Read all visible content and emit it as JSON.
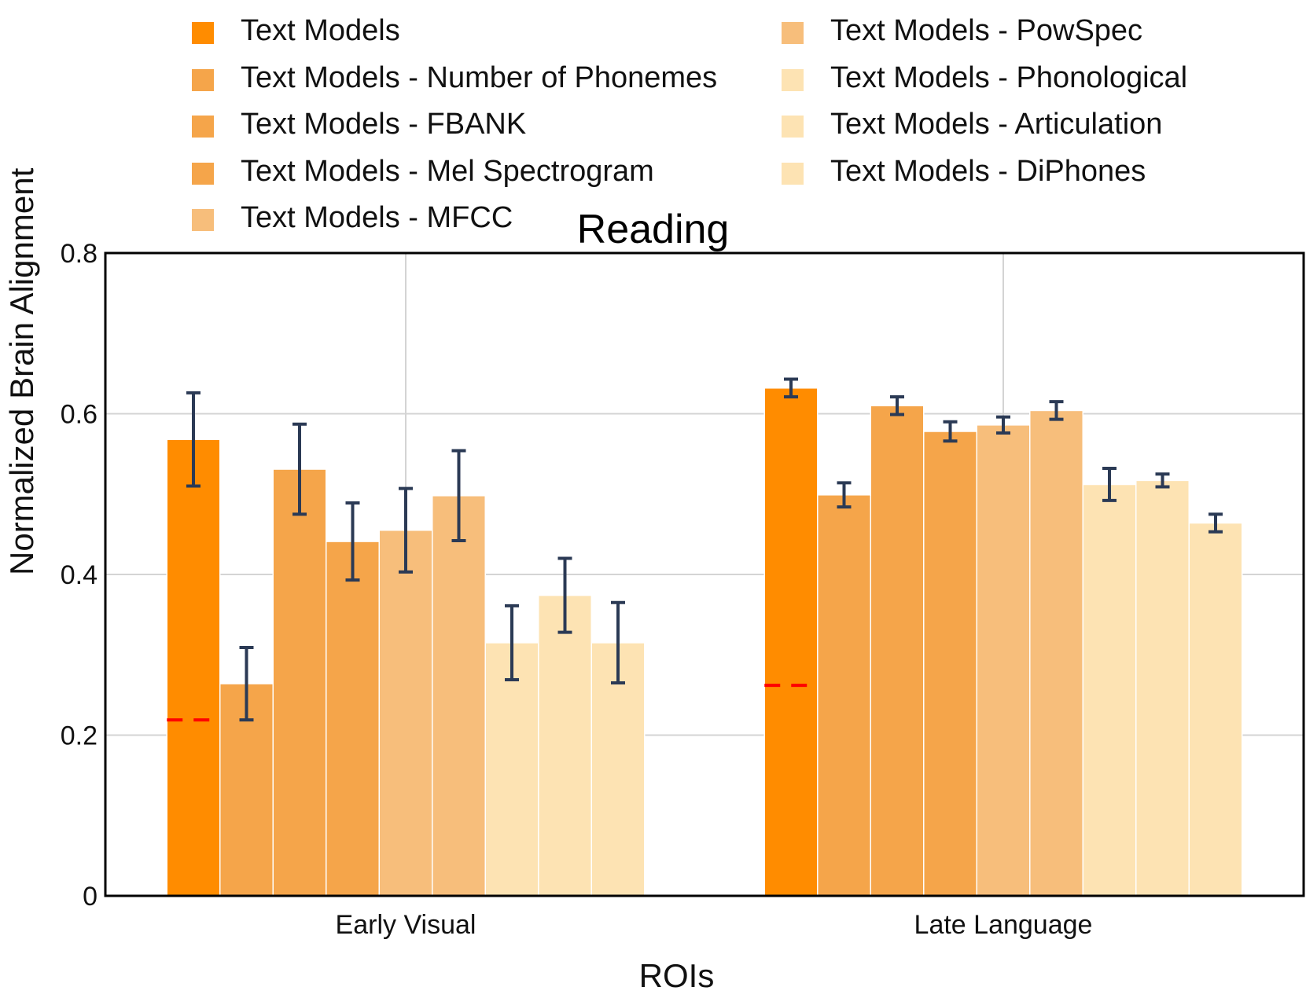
{
  "chart_data": {
    "type": "bar",
    "title": "Reading",
    "xlabel": "ROIs",
    "ylabel": "Normalized Brain Alignment",
    "ylim": [
      0,
      0.8
    ],
    "yticks": [
      0,
      0.2,
      0.4,
      0.6,
      0.8
    ],
    "ytick_labels": [
      "0",
      "0.2",
      "0.4",
      "0.6",
      "0.8"
    ],
    "categories": [
      "Early Visual",
      "Late Language"
    ],
    "grid": true,
    "legend_position": "top",
    "series": [
      {
        "name": "Text Models",
        "color": "#ff8c00",
        "values": [
          0.568,
          0.632
        ],
        "errors": [
          0.058,
          0.011
        ]
      },
      {
        "name": "Text Models - Number of Phonemes",
        "color": "#f5a54a",
        "values": [
          0.264,
          0.499
        ],
        "errors": [
          0.045,
          0.015
        ]
      },
      {
        "name": "Text Models - FBANK",
        "color": "#f5a54a",
        "values": [
          0.531,
          0.61
        ],
        "errors": [
          0.056,
          0.011
        ]
      },
      {
        "name": "Text Models - Mel Spectrogram",
        "color": "#f5a54a",
        "values": [
          0.441,
          0.578
        ],
        "errors": [
          0.048,
          0.012
        ]
      },
      {
        "name": "Text Models - MFCC",
        "color": "#f7be7b",
        "values": [
          0.455,
          0.586
        ],
        "errors": [
          0.052,
          0.01
        ]
      },
      {
        "name": "Text Models - PowSpec",
        "color": "#f7be7b",
        "values": [
          0.498,
          0.604
        ],
        "errors": [
          0.056,
          0.011
        ]
      },
      {
        "name": "Text Models - Phonological",
        "color": "#fde3b3",
        "values": [
          0.315,
          0.512
        ],
        "errors": [
          0.046,
          0.02
        ]
      },
      {
        "name": "Text Models - Articulation",
        "color": "#fde3b3",
        "values": [
          0.374,
          0.517
        ],
        "errors": [
          0.046,
          0.008
        ]
      },
      {
        "name": "Text Models - DiPhones",
        "color": "#fde3b3",
        "values": [
          0.315,
          0.464
        ],
        "errors": [
          0.05,
          0.011
        ]
      }
    ],
    "baseline": {
      "color": "#ff0000",
      "values": [
        0.219,
        0.262
      ]
    },
    "error_bar_color": "#2b3a55"
  }
}
